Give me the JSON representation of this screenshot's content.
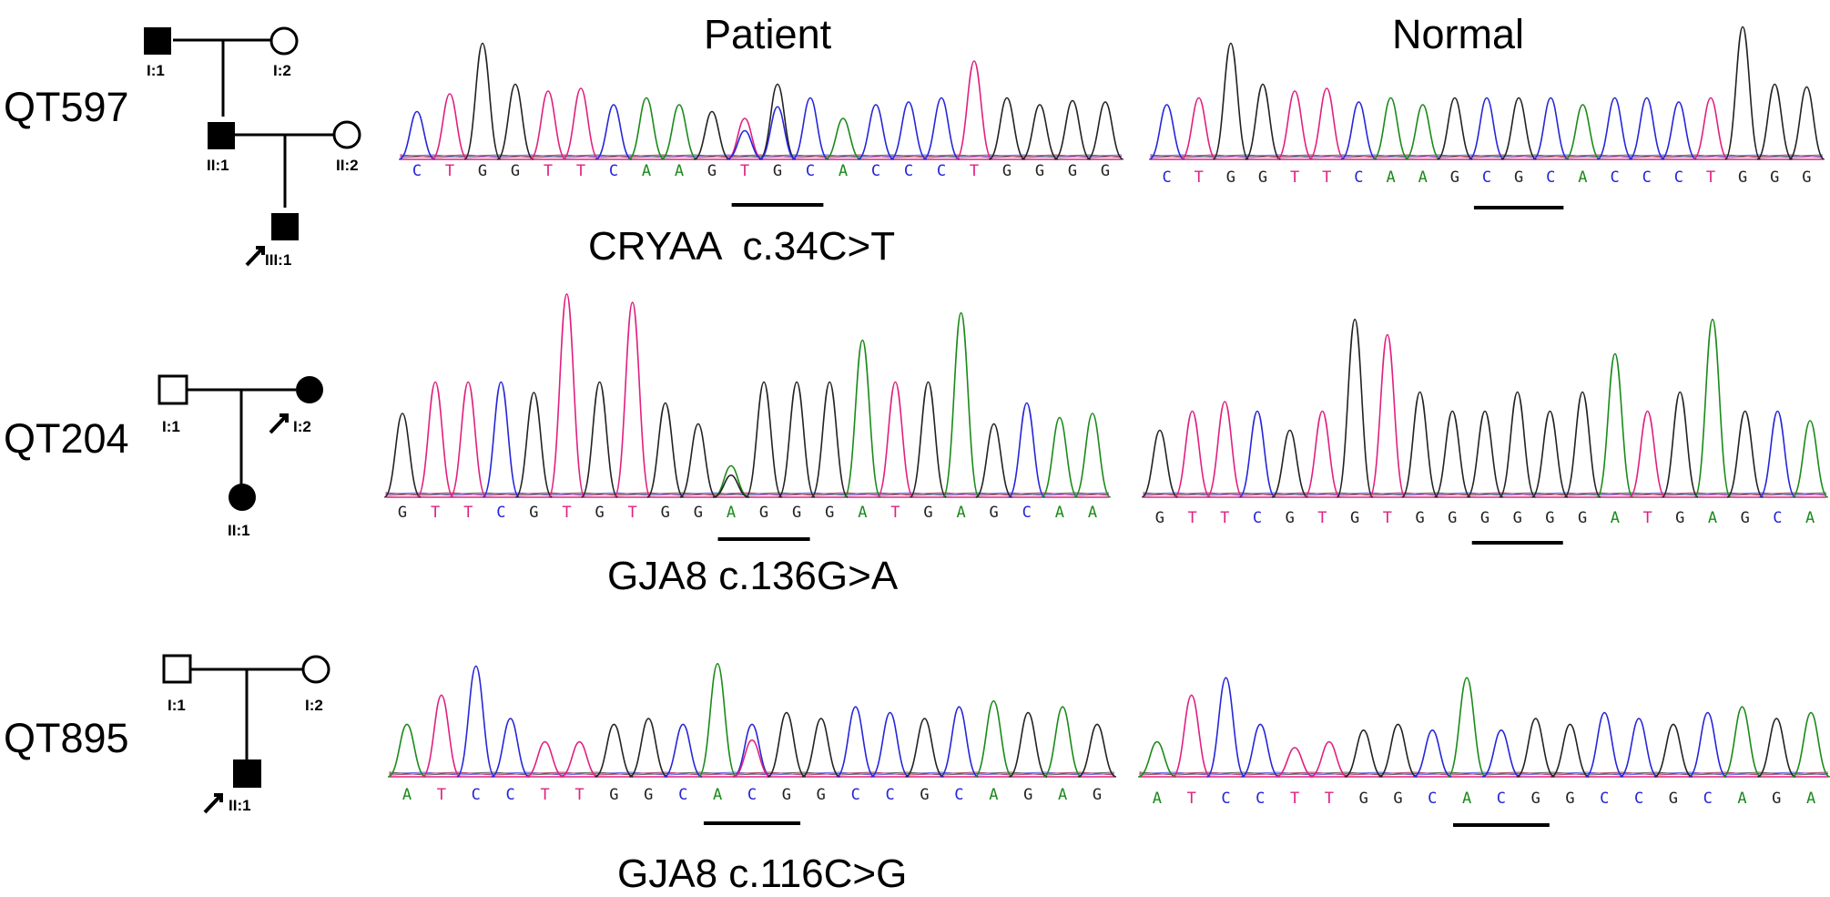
{
  "headers": {
    "patient": "Patient",
    "normal": "Normal"
  },
  "colors": {
    "A": "#1a8a1a",
    "C": "#2626d9",
    "G": "#222222",
    "T": "#e02080",
    "baseline": "#e02080"
  },
  "families": [
    {
      "id": "QT597",
      "mutation": "CRYAA  c.34C>T",
      "pedigree": [
        "I:1",
        "I:2",
        "II:1",
        "II:2",
        "III:1"
      ],
      "patient_seq": "CTGGTTCAAGTGCACCCTGGGG",
      "normal_seq": "CTGGTTCAAGCGCACCCTGGG",
      "patient_underline": [
        10,
        12
      ],
      "normal_underline": [
        10,
        12
      ],
      "patient_het": [
        10,
        11
      ],
      "patient_peaks": [
        0.35,
        0.48,
        0.85,
        0.55,
        0.5,
        0.52,
        0.4,
        0.45,
        0.4,
        0.35,
        0.3,
        0.55,
        0.45,
        0.3,
        0.4,
        0.42,
        0.45,
        0.72,
        0.45,
        0.4,
        0.43,
        0.42
      ],
      "normal_peaks": [
        0.4,
        0.45,
        0.85,
        0.55,
        0.5,
        0.52,
        0.42,
        0.45,
        0.4,
        0.45,
        0.45,
        0.45,
        0.45,
        0.4,
        0.45,
        0.45,
        0.42,
        0.45,
        0.97,
        0.55,
        0.53
      ]
    },
    {
      "id": "QT204",
      "mutation": "GJA8 c.136G>A",
      "pedigree": [
        "I:1",
        "I:2",
        "II:1"
      ],
      "patient_seq": "GTTCGTGTGGAGGGATGAGCAA",
      "normal_seq": "GTTCGTGTGGGGGGATGAGCA",
      "patient_underline": [
        10,
        12
      ],
      "normal_underline": [
        10,
        12
      ],
      "patient_het": [
        10
      ],
      "patient_peaks": [
        0.4,
        0.55,
        0.55,
        0.55,
        0.5,
        0.97,
        0.55,
        0.93,
        0.45,
        0.35,
        0.15,
        0.55,
        0.55,
        0.55,
        0.75,
        0.55,
        0.55,
        0.88,
        0.35,
        0.45,
        0.38,
        0.4
      ],
      "normal_peaks": [
        0.35,
        0.45,
        0.5,
        0.45,
        0.35,
        0.45,
        0.93,
        0.85,
        0.55,
        0.45,
        0.45,
        0.55,
        0.45,
        0.55,
        0.75,
        0.45,
        0.55,
        0.93,
        0.45,
        0.45,
        0.4
      ]
    },
    {
      "id": "QT895",
      "mutation": "GJA8 c.116C>G",
      "pedigree": [
        "I:1",
        "I:2",
        "II:1"
      ],
      "patient_seq": "ATCCTTGGCACGGCCGCAGAG",
      "normal_seq": "ATCCTTGGCACGGCCGCAGA",
      "patient_underline": [
        9,
        11
      ],
      "normal_underline": [
        9,
        11
      ],
      "patient_het": [
        10
      ],
      "patient_peaks": [
        0.45,
        0.7,
        0.95,
        0.5,
        0.3,
        0.3,
        0.45,
        0.5,
        0.45,
        0.97,
        0.45,
        0.55,
        0.5,
        0.6,
        0.55,
        0.5,
        0.6,
        0.65,
        0.55,
        0.6,
        0.45
      ],
      "normal_peaks": [
        0.3,
        0.7,
        0.85,
        0.45,
        0.25,
        0.3,
        0.4,
        0.45,
        0.4,
        0.85,
        0.4,
        0.5,
        0.45,
        0.55,
        0.5,
        0.45,
        0.55,
        0.6,
        0.5,
        0.55
      ]
    }
  ]
}
